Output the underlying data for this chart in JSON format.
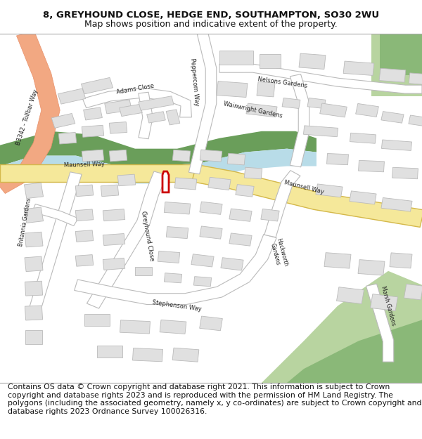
{
  "title_line1": "8, GREYHOUND CLOSE, HEDGE END, SOUTHAMPTON, SO30 2WU",
  "title_line2": "Map shows position and indicative extent of the property.",
  "footer_text": "Contains OS data © Crown copyright and database right 2021. This information is subject to Crown copyright and database rights 2023 and is reproduced with the permission of HM Land Registry. The polygons (including the associated geometry, namely x, y co-ordinates) are subject to Crown copyright and database rights 2023 Ordnance Survey 100026316.",
  "bg_color": "#ffffff",
  "map_bg": "#ffffff",
  "title_fontsize": 9.5,
  "subtitle_fontsize": 9,
  "footer_fontsize": 7.8,
  "fig_width": 6.0,
  "fig_height": 6.25,
  "dpi": 100,
  "road_yellow": "#f5e89a",
  "road_yellow_edge": "#d4b84a",
  "road_white": "#ffffff",
  "road_outline": "#bbbbbb",
  "green_dark": "#6a9e5a",
  "green_mid": "#8ab878",
  "green_light": "#b8d4a0",
  "blue_water": "#b8dce8",
  "building_fill": "#e0e0e0",
  "building_outline": "#bbbbbb",
  "red_outline": "#cc0000",
  "red_fill": "#ffffff",
  "salmon": "#f2a882"
}
